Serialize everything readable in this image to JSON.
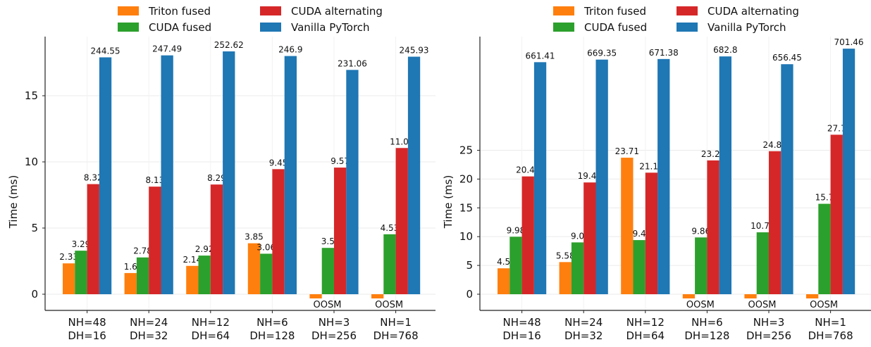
{
  "legend": [
    {
      "name": "Triton fused",
      "color": "#ff7f0e"
    },
    {
      "name": "CUDA alternating",
      "color": "#d62728"
    },
    {
      "name": "CUDA fused",
      "color": "#2ca02c"
    },
    {
      "name": "Vanilla PyTorch",
      "color": "#1f77b4"
    }
  ],
  "missing_label": "OOSM",
  "chart_data": [
    {
      "type": "bar",
      "ylabel": "Time (ms)",
      "xlabel": "",
      "categories": [
        [
          "NH=48",
          "DH=16"
        ],
        [
          "NH=24",
          "DH=32"
        ],
        [
          "NH=12",
          "DH=64"
        ],
        [
          "NH=6",
          "DH=128"
        ],
        [
          "NH=3",
          "DH=256"
        ],
        [
          "NH=1",
          "DH=768"
        ]
      ],
      "y_ticks": [
        0,
        5,
        10,
        15
      ],
      "ylim": [
        -1.2,
        19.3
      ],
      "broken_axis": {
        "series": "Vanilla PyTorch",
        "display_heights": [
          17.9,
          18.05,
          18.35,
          18.0,
          16.95,
          17.95
        ]
      },
      "series": [
        {
          "name": "Triton fused",
          "color": "#ff7f0e",
          "values": [
            2.33,
            1.6,
            2.14,
            3.85,
            null,
            null
          ],
          "labels": [
            "2.33",
            "1.6",
            "2.14",
            "3.85",
            "",
            ""
          ]
        },
        {
          "name": "CUDA fused",
          "color": "#2ca02c",
          "values": [
            3.29,
            2.78,
            2.92,
            3.06,
            3.5,
            4.53
          ],
          "labels": [
            "3.29",
            "2.78",
            "2.92",
            "3.06",
            "3.5",
            "4.53"
          ]
        },
        {
          "name": "CUDA alternating",
          "color": "#d62728",
          "values": [
            8.32,
            8.13,
            8.29,
            9.45,
            9.57,
            11.05
          ],
          "labels": [
            "8.32",
            "8.13",
            "8.29",
            "9.45",
            "9.57",
            "11.05"
          ]
        },
        {
          "name": "Vanilla PyTorch",
          "color": "#1f77b4",
          "values": [
            244.55,
            247.49,
            252.62,
            246.9,
            231.06,
            245.93
          ],
          "labels": [
            "244.55",
            "247.49",
            "252.62",
            "246.9",
            "231.06",
            "245.93"
          ]
        }
      ]
    },
    {
      "type": "bar",
      "ylabel": "Time (ms)",
      "xlabel": "",
      "categories": [
        [
          "NH=48",
          "DH=16"
        ],
        [
          "NH=24",
          "DH=32"
        ],
        [
          "NH=12",
          "DH=64"
        ],
        [
          "NH=6",
          "DH=128"
        ],
        [
          "NH=3",
          "DH=256"
        ],
        [
          "NH=1",
          "DH=768"
        ]
      ],
      "y_ticks": [
        0,
        5,
        10,
        15,
        20,
        25
      ],
      "ylim": [
        -2.8,
        44.6
      ],
      "broken_axis": {
        "series": "Vanilla PyTorch",
        "display_heights": [
          40.3,
          40.75,
          40.85,
          41.3,
          39.95,
          42.65
        ]
      },
      "series": [
        {
          "name": "Triton fused",
          "color": "#ff7f0e",
          "values": [
            4.5,
            5.58,
            23.71,
            null,
            null,
            null
          ],
          "labels": [
            "4.5",
            "5.58",
            "23.71",
            "",
            "",
            ""
          ]
        },
        {
          "name": "CUDA fused",
          "color": "#2ca02c",
          "values": [
            9.98,
            9.0,
            9.4,
            9.86,
            10.75,
            15.7
          ],
          "labels": [
            "9.98",
            "9.0",
            "9.4",
            "9.86",
            "10.75",
            "15.7"
          ]
        },
        {
          "name": "CUDA alternating",
          "color": "#d62728",
          "values": [
            20.46,
            19.41,
            21.11,
            23.24,
            24.84,
            27.7
          ],
          "labels": [
            "20.46",
            "19.41",
            "21.11",
            "23.24",
            "24.84",
            "27.7"
          ]
        },
        {
          "name": "Vanilla PyTorch",
          "color": "#1f77b4",
          "values": [
            661.41,
            669.35,
            671.38,
            682.8,
            656.45,
            701.46
          ],
          "labels": [
            "661.41",
            "669.35",
            "671.38",
            "682.8",
            "656.45",
            "701.46"
          ]
        }
      ]
    }
  ]
}
